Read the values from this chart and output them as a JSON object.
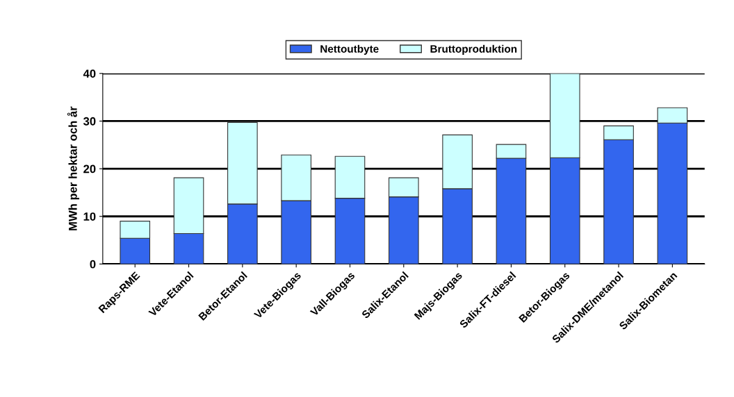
{
  "chart_data": {
    "type": "bar",
    "stacked": true,
    "ylabel": "MWh per hektar och år",
    "categories": [
      "Raps-RME",
      "Vete-Etanol",
      "Betor-Etanol",
      "Vete-Biogas",
      "Vall-Biogas",
      "Salix-Etanol",
      "Majs-Biogas",
      "Salix-FT-diesel",
      "Betor-Biogas",
      "Salix-DME/metanol",
      "Salix-Biometan"
    ],
    "series": [
      {
        "name": "Nettoutbyte",
        "color": "#3366ee",
        "values": [
          5.4,
          6.4,
          12.6,
          13.3,
          13.8,
          14.1,
          15.8,
          22.2,
          22.3,
          26.1,
          29.6
        ]
      },
      {
        "name": "Bruttoproduktion",
        "color": "#ccffff",
        "values": [
          3.6,
          11.7,
          17.1,
          9.6,
          8.8,
          4.0,
          11.3,
          2.9,
          17.7,
          2.9,
          3.2
        ]
      }
    ],
    "ylim": [
      0,
      40
    ],
    "yticks": [
      0,
      10,
      20,
      30,
      40
    ],
    "grid": "y",
    "legend": "top"
  }
}
